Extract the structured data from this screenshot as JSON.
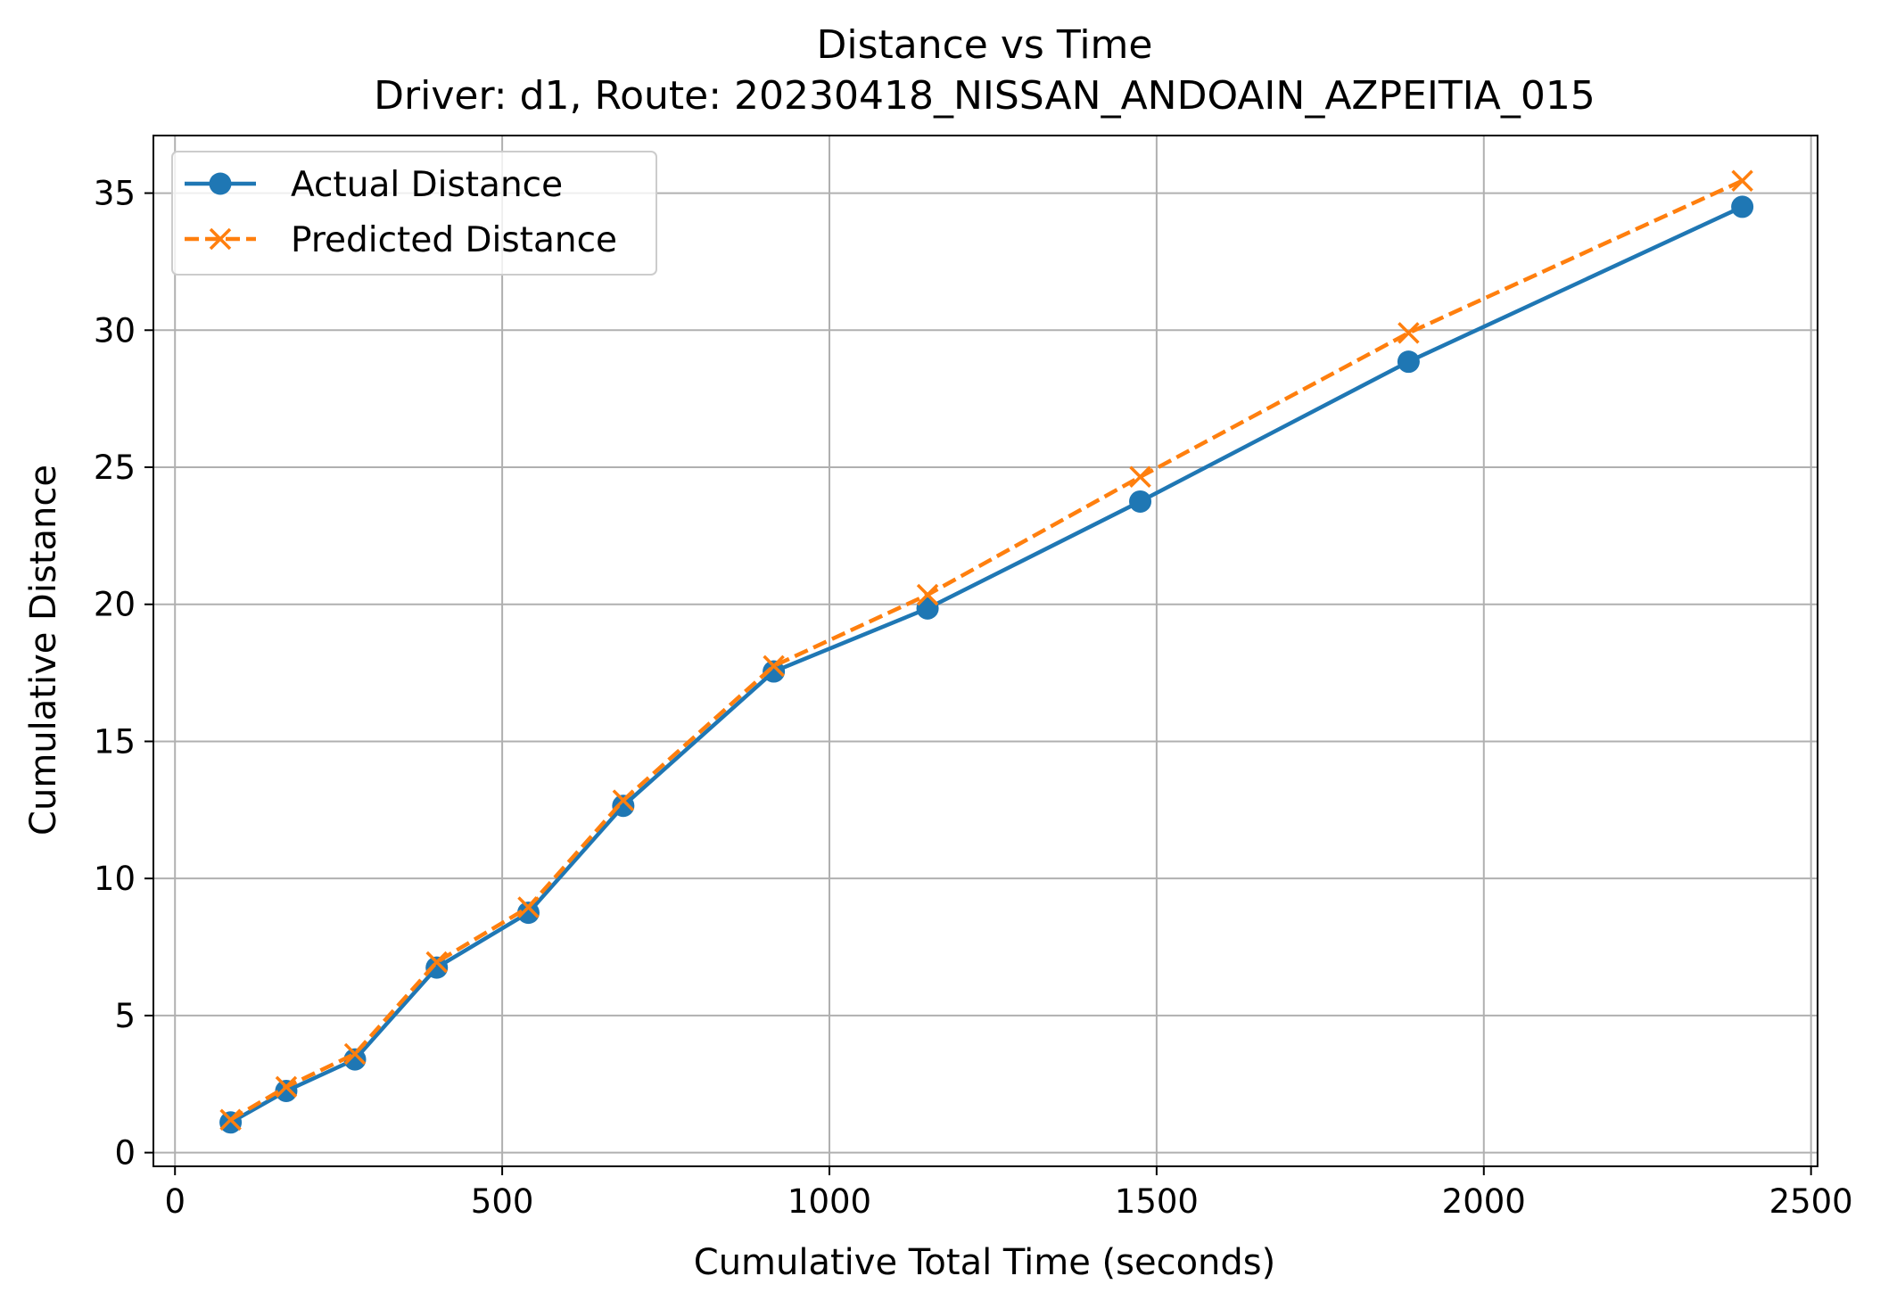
{
  "chart_data": {
    "type": "line",
    "title": "Distance vs Time",
    "subtitle": "Driver: d1, Route: 20230418_NISSAN_ANDOAIN_AZPEITIA_015",
    "xlabel": "Cumulative Total Time (seconds)",
    "ylabel": "Cumulative Distance",
    "xlim": [
      -33,
      2510
    ],
    "ylim": [
      -0.5,
      37.1
    ],
    "xticks": [
      0,
      500,
      1000,
      1500,
      2000,
      2500
    ],
    "yticks": [
      0,
      5,
      10,
      15,
      20,
      25,
      30,
      35
    ],
    "xtick_labels": [
      "0",
      "500",
      "1000",
      "1500",
      "2000",
      "2500"
    ],
    "ytick_labels": [
      "0",
      "5",
      "10",
      "15",
      "20",
      "25",
      "30",
      "35"
    ],
    "grid": true,
    "legend_position": "upper-left",
    "series": [
      {
        "name": "Actual Distance",
        "color": "#1f77b4",
        "line_style": "solid",
        "marker": "circle",
        "x": [
          85,
          170,
          275,
          400,
          540,
          685,
          915,
          1150,
          1475,
          1885,
          2395
        ],
        "y": [
          1.1,
          2.25,
          3.4,
          6.75,
          8.75,
          12.65,
          17.55,
          19.85,
          23.75,
          28.85,
          34.5
        ]
      },
      {
        "name": "Predicted Distance",
        "color": "#ff7f0e",
        "line_style": "dashed",
        "marker": "x",
        "x": [
          85,
          170,
          275,
          400,
          540,
          685,
          915,
          1150,
          1475,
          1885,
          2395
        ],
        "y": [
          1.2,
          2.4,
          3.6,
          6.95,
          8.95,
          12.85,
          17.75,
          20.35,
          24.65,
          29.9,
          35.45
        ]
      }
    ]
  }
}
